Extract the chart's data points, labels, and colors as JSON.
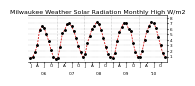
{
  "title": "Milwaukee Weather Solar Radiation Monthly High W/m2",
  "values": [
    80,
    90,
    180,
    300,
    580,
    650,
    620,
    500,
    380,
    220,
    100,
    60,
    70,
    280,
    520,
    580,
    680,
    700,
    650,
    560,
    440,
    290,
    180,
    90,
    150,
    350,
    480,
    600,
    660,
    720,
    690,
    580,
    430,
    270,
    140,
    95,
    80,
    160,
    380,
    540,
    640,
    710,
    700,
    600,
    560,
    340,
    180,
    100,
    90,
    200,
    400,
    560,
    650,
    720,
    700,
    620,
    460,
    300,
    160,
    85
  ],
  "ylim": [
    0,
    850
  ],
  "yticks": [
    100,
    200,
    300,
    400,
    500,
    600,
    700,
    800
  ],
  "ytick_labels": [
    "1",
    "2",
    "3",
    "4",
    "5",
    "6",
    "7",
    "8"
  ],
  "line_color": "#cc0000",
  "marker_color": "#000000",
  "grid_color": "#999999",
  "bg_color": "#ffffff",
  "title_fontsize": 4.5,
  "tick_fontsize": 3.0,
  "xtick_step": 3,
  "num_months": 60,
  "year_positions": [
    0,
    12,
    24,
    36,
    48
  ],
  "year_labels": [
    "'06",
    "'07",
    "'08",
    "'09",
    "'10"
  ]
}
